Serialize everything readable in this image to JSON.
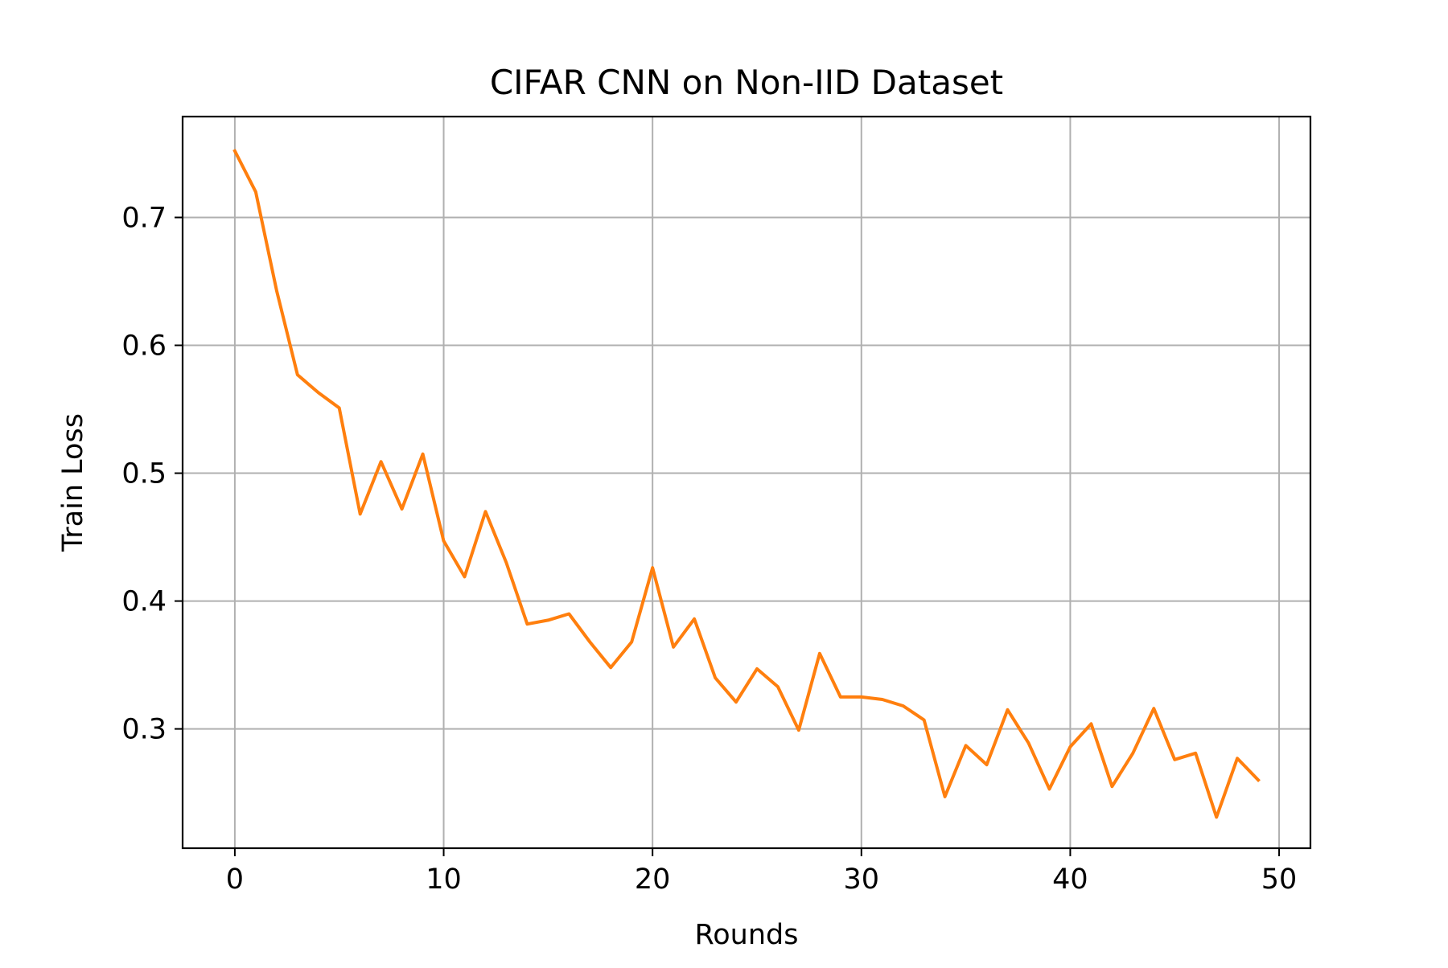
{
  "chart_data": {
    "type": "line",
    "title": "CIFAR CNN on Non-IID Dataset",
    "xlabel": "Rounds",
    "ylabel": "Train Loss",
    "xlim": [
      -2.5,
      51.5
    ],
    "ylim": [
      0.2067,
      0.7789
    ],
    "xticks": [
      0,
      10,
      20,
      30,
      40,
      50
    ],
    "yticks": [
      0.3,
      0.4,
      0.5,
      0.6,
      0.7
    ],
    "xtick_labels": [
      "0",
      "10",
      "20",
      "30",
      "40",
      "50"
    ],
    "ytick_labels": [
      "0.3",
      "0.4",
      "0.5",
      "0.6",
      "0.7"
    ],
    "grid": true,
    "legend": "none",
    "series": [
      {
        "color": "#ff7f0e",
        "x": [
          0,
          1,
          2,
          3,
          4,
          5,
          6,
          7,
          8,
          9,
          10,
          11,
          12,
          13,
          14,
          15,
          16,
          17,
          18,
          19,
          20,
          21,
          22,
          23,
          24,
          25,
          26,
          27,
          28,
          29,
          30,
          31,
          32,
          33,
          34,
          35,
          36,
          37,
          38,
          39,
          40,
          41,
          42,
          43,
          44,
          45,
          46,
          47,
          48,
          49
        ],
        "y": [
          0.752,
          0.72,
          0.643,
          0.577,
          0.563,
          0.551,
          0.468,
          0.509,
          0.472,
          0.515,
          0.447,
          0.419,
          0.47,
          0.43,
          0.382,
          0.385,
          0.39,
          0.368,
          0.348,
          0.368,
          0.426,
          0.364,
          0.386,
          0.34,
          0.321,
          0.347,
          0.333,
          0.299,
          0.359,
          0.325,
          0.325,
          0.323,
          0.318,
          0.307,
          0.247,
          0.287,
          0.272,
          0.315,
          0.289,
          0.253,
          0.286,
          0.304,
          0.255,
          0.281,
          0.316,
          0.276,
          0.281,
          0.231,
          0.277,
          0.26
        ]
      }
    ]
  }
}
